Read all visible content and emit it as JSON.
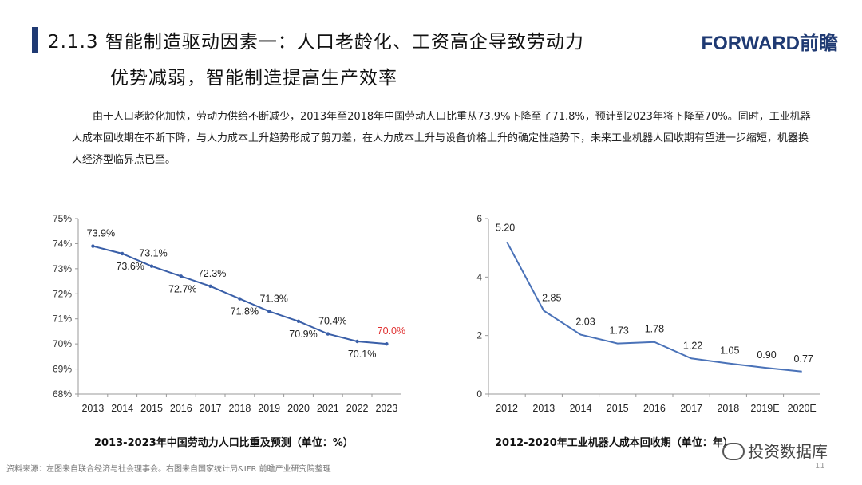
{
  "header": {
    "title_line1": "2.1.3 智能制造驱动因素一：人口老龄化、工资高企导致劳动力",
    "title_line2": "优势减弱，智能制造提高生产效率",
    "logo": "FORWARD前瞻"
  },
  "intro": "由于人口老龄化加快，劳动力供给不断减少，2013年至2018年中国劳动人口比重从73.9%下降至了71.8%，预计到2023年将下降至70%。同时，工业机器人成本回收期在不断下降，与人力成本上升趋势形成了剪刀差，在人力成本上升与设备价格上升的确定性趋势下，未来工业机器人回收期有望进一步缩短，机器换人经济型临界点已至。",
  "chart_data": [
    {
      "type": "line",
      "title": "2013-2023年中国劳动力人口比重及预测（单位：%）",
      "categories": [
        "2013",
        "2014",
        "2015",
        "2016",
        "2017",
        "2018",
        "2019",
        "2020",
        "2021",
        "2022",
        "2023"
      ],
      "values": [
        73.9,
        73.6,
        73.1,
        72.7,
        72.3,
        71.8,
        71.3,
        70.9,
        70.4,
        70.1,
        70.0
      ],
      "labels": [
        "73.9%",
        "73.6%",
        "73.1%",
        "72.7%",
        "72.3%",
        "71.8%",
        "71.3%",
        "70.9%",
        "70.4%",
        "70.1%",
        "70.0%"
      ],
      "highlight_last_color": "#e03030",
      "yticks": [
        "68%",
        "69%",
        "70%",
        "71%",
        "72%",
        "73%",
        "74%",
        "75%"
      ],
      "ylim": [
        68,
        75
      ],
      "line_color": "#3a5fa8",
      "grid": false
    },
    {
      "type": "line",
      "title": "2012-2020年工业机器人成本回收期（单位：年）",
      "categories": [
        "2012",
        "2013",
        "2014",
        "2015",
        "2016",
        "2017",
        "2018",
        "2019E",
        "2020E"
      ],
      "values": [
        5.2,
        2.85,
        2.03,
        1.73,
        1.78,
        1.22,
        1.05,
        0.9,
        0.77
      ],
      "labels": [
        "5.20",
        "2.85",
        "2.03",
        "1.73",
        "1.78",
        "1.22",
        "1.05",
        "0.90",
        "0.77"
      ],
      "yticks": [
        "0",
        "2",
        "4",
        "6"
      ],
      "ylim": [
        0,
        6
      ],
      "line_color": "#4a72b8",
      "grid": false
    }
  ],
  "captions": {
    "left": "2013-2023年中国劳动力人口比重及预测（单位：%）",
    "right": "2012-2020年工业机器人成本回收期（单位：年）"
  },
  "footer": {
    "source": "资料来源：左图来自联合经济与社会理事会。右图来自国家统计局&IFR 前瞻产业研究院整理",
    "page": "11",
    "wechat": "投资数据库"
  }
}
